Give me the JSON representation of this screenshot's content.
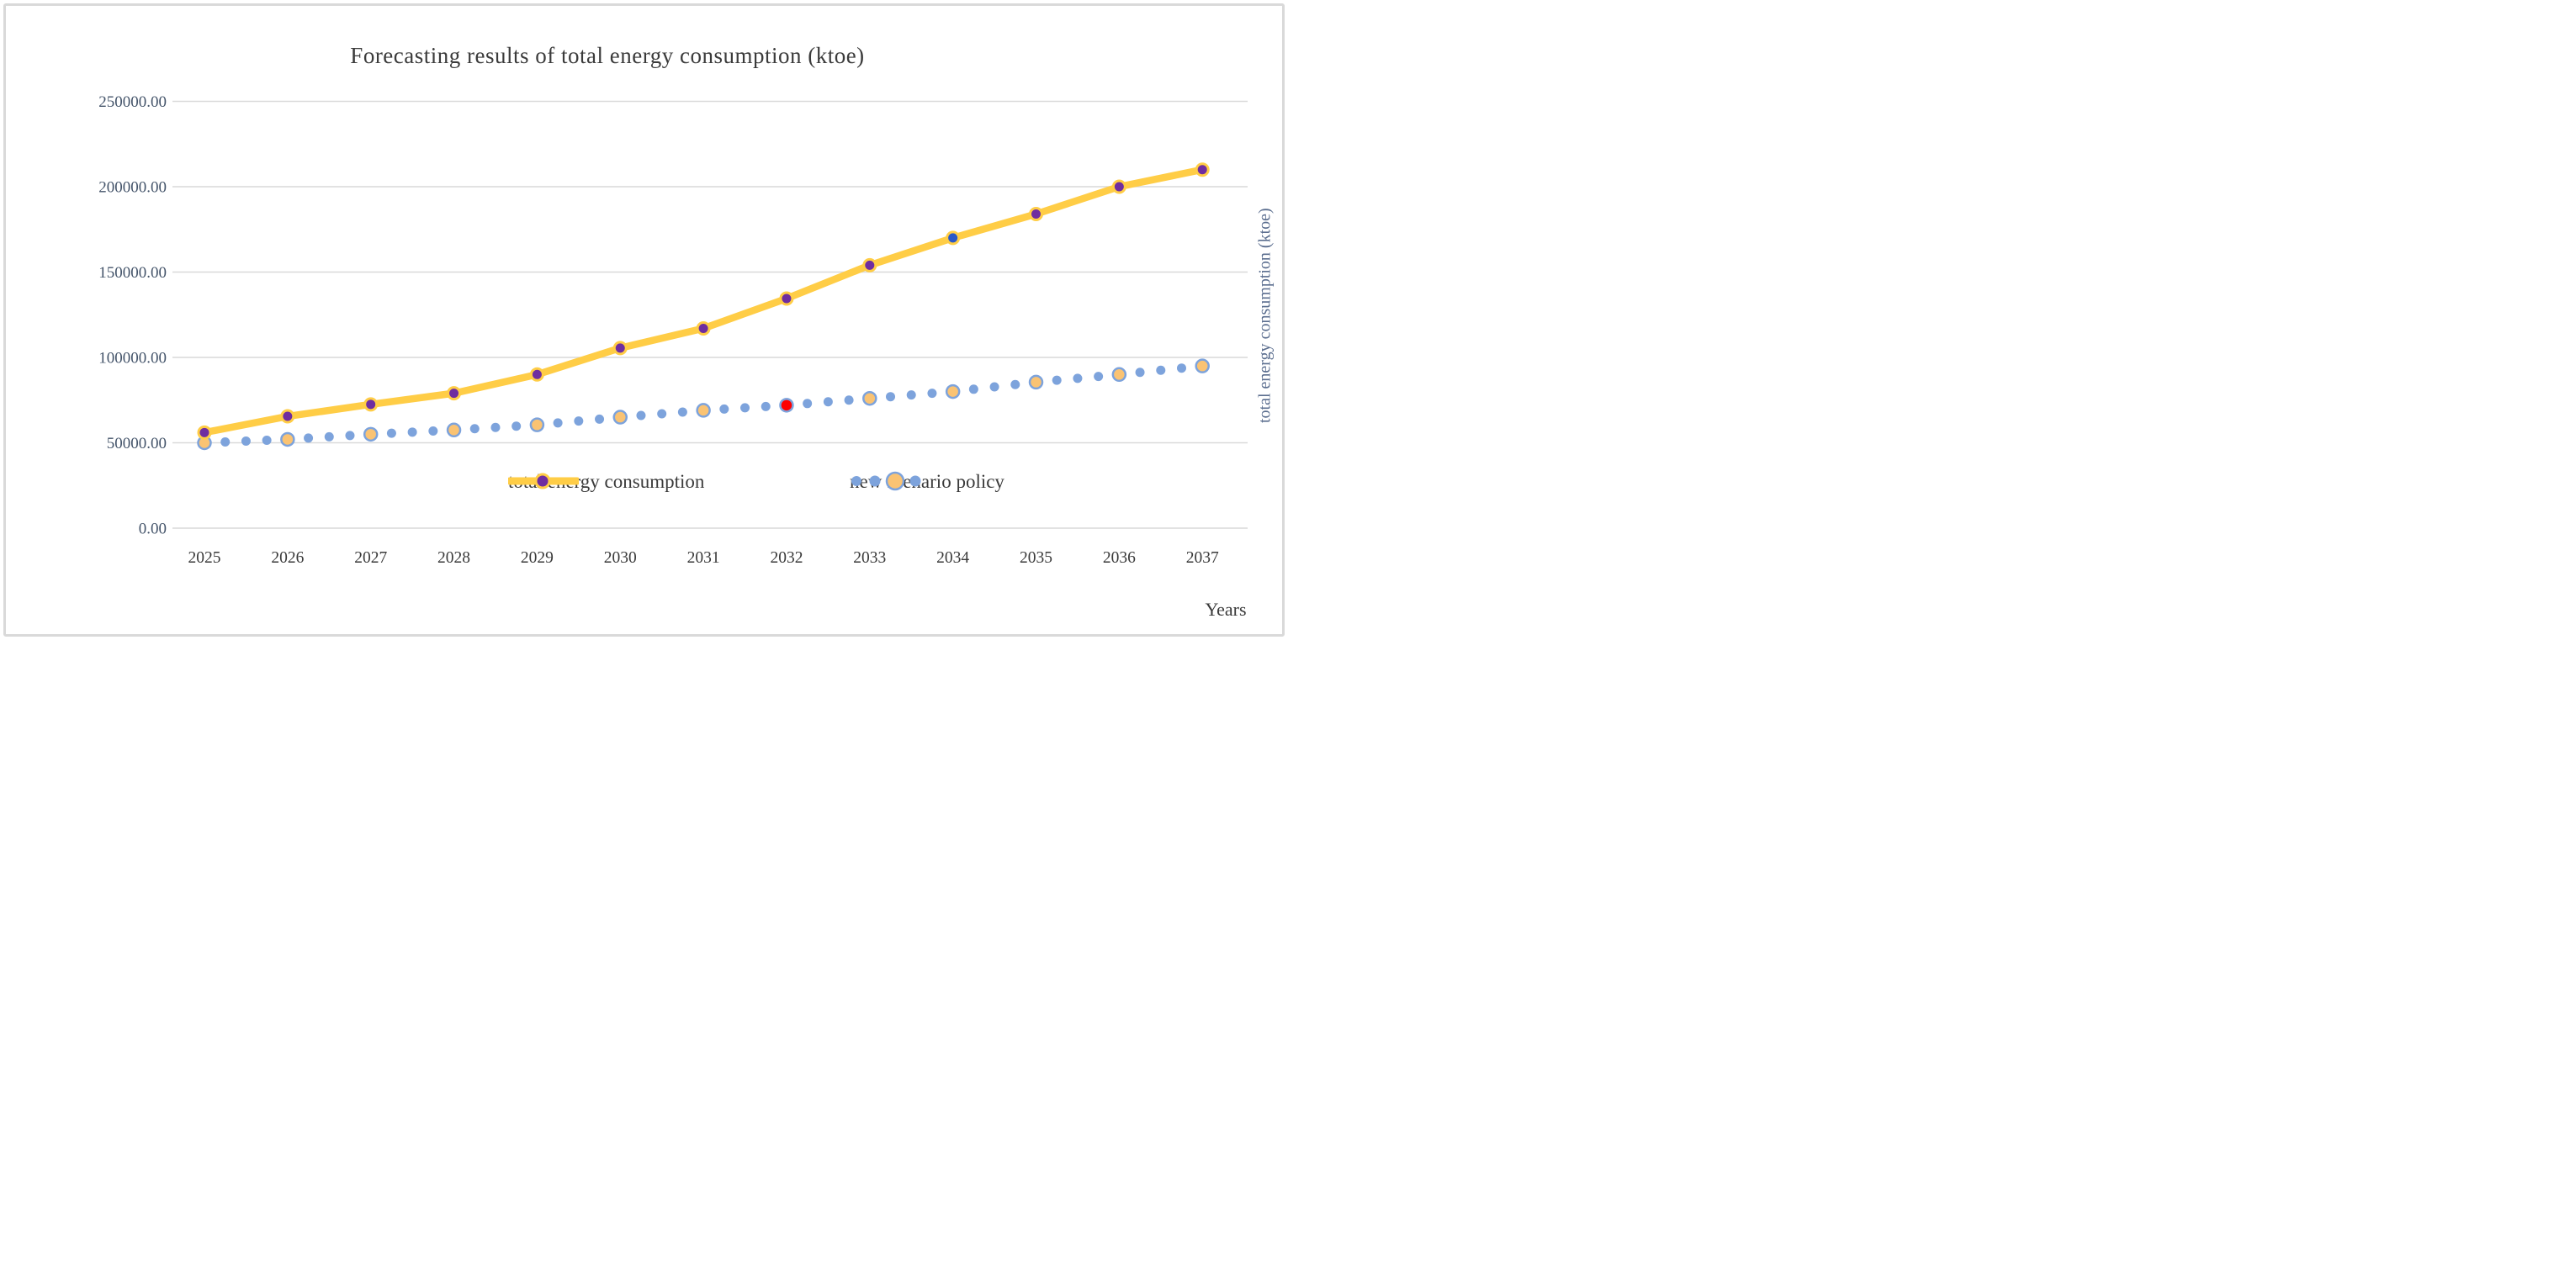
{
  "frame": {
    "background": "#ffffff",
    "border_color": "#d9d9d9"
  },
  "chart_data": {
    "type": "line",
    "title": "Forecasting results of total energy consumption (ktoe)",
    "xlabel": "Years",
    "right_axis_label": "total energy consumption (ktoe)",
    "x_categories": [
      "2025",
      "2026",
      "2027",
      "2028",
      "2029",
      "2030",
      "2031",
      "2032",
      "2033",
      "2034",
      "2035",
      "2036",
      "2037"
    ],
    "ylim": [
      0,
      250000
    ],
    "ytick_values": [
      0,
      50000,
      100000,
      150000,
      200000,
      250000
    ],
    "ytick_labels": [
      "0.00",
      "50000.00",
      "100000.00",
      "150000.00",
      "200000.00",
      "250000.00"
    ],
    "grid": true,
    "legend_position": "inside-bottom-center",
    "series": [
      {
        "name": "total energy consumption",
        "style": "solid-line",
        "line_color": "#FFCD46",
        "marker_color": "#6F2DA0",
        "marker_outline": "#FFCD46",
        "values": [
          56000,
          65500,
          72500,
          79000,
          90000,
          105500,
          117000,
          134500,
          154000,
          170000,
          184000,
          200000,
          210000
        ],
        "marker_overrides": {
          "2034": "#2A58C8"
        }
      },
      {
        "name": "new scenario policy",
        "style": "dotted-line",
        "dot_color": "#7DA3DC",
        "marker_color": "#FAC373",
        "marker_outline": "#7DA3DC",
        "values": [
          50000,
          52000,
          55000,
          57500,
          60500,
          65000,
          69000,
          72000,
          76000,
          80000,
          85500,
          90000,
          95000
        ],
        "marker_overrides": {
          "2032": "#FE0000"
        }
      }
    ]
  },
  "colors": {
    "gridline": "#d9d9d9",
    "title_text": "#3b3b3b",
    "ytick_text": "#44546a",
    "xtick_text": "#3a3a3a",
    "right_label_text": "#5b6e8f"
  }
}
